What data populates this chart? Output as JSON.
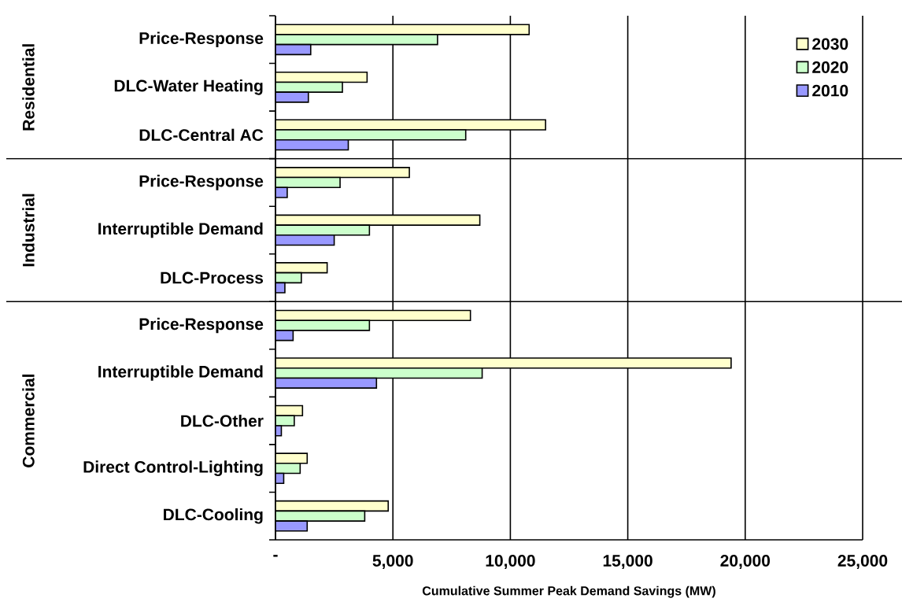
{
  "chart_data": {
    "type": "bar",
    "orientation": "horizontal",
    "xlabel": "Cumulative Summer Peak Demand Savings (MW)",
    "categories": [
      "Price-Response",
      "DLC-Water Heating",
      "DLC-Central AC",
      "Price-Response",
      "Interruptible Demand",
      "DLC-Process",
      "Price-Response",
      "Interruptible Demand",
      "DLC-Other",
      "Direct Control-Lighting",
      "DLC-Cooling"
    ],
    "series": [
      {
        "name": "2030",
        "color": "#ffffcc",
        "values": [
          10800,
          3900,
          11500,
          5700,
          8700,
          2200,
          8300,
          19400,
          1150,
          1350,
          4800
        ]
      },
      {
        "name": "2020",
        "color": "#ccffcc",
        "values": [
          6900,
          2850,
          8100,
          2750,
          4000,
          1100,
          4000,
          8800,
          800,
          1050,
          3800
        ]
      },
      {
        "name": "2010",
        "color": "#9999ff",
        "values": [
          1500,
          1400,
          3100,
          500,
          2500,
          400,
          750,
          4300,
          250,
          350,
          1350
        ]
      }
    ],
    "annotations": [
      "Residential",
      "Industrial",
      "Commercial"
    ],
    "xlim": [
      0,
      25000
    ],
    "xticks": [
      {
        "value": 0,
        "label": "-"
      },
      {
        "value": 5000,
        "label": "5,000"
      },
      {
        "value": 10000,
        "label": "10,000"
      },
      {
        "value": 15000,
        "label": "15,000"
      },
      {
        "value": 20000,
        "label": "20,000"
      },
      {
        "value": 25000,
        "label": "25,000"
      }
    ],
    "grid": "x",
    "legend": "top right"
  }
}
